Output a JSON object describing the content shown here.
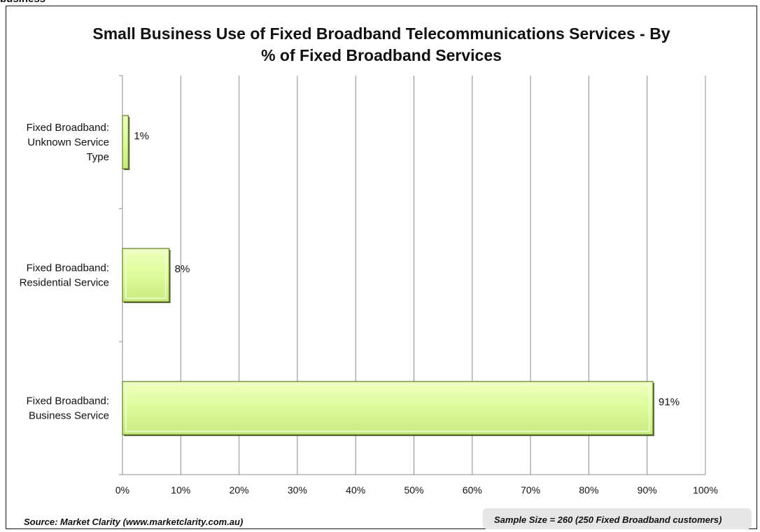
{
  "page_top_fragment": "business",
  "chart_data": {
    "type": "bar",
    "orientation": "horizontal",
    "title": "Small Business Use of Fixed Broadband Telecommunications Services - By % of Fixed Broadband Services",
    "title_lines": [
      "Small Business Use of Fixed Broadband Telecommunications Services - By",
      "% of Fixed Broadband Services"
    ],
    "categories": [
      "Fixed Broadband: Unknown Service Type",
      "Fixed Broadband: Residential Service",
      "Fixed Broadband: Business Service"
    ],
    "category_label_lines": [
      [
        "Fixed Broadband:",
        "Unknown Service",
        "Type"
      ],
      [
        "Fixed Broadband:",
        "Residential Service"
      ],
      [
        "Fixed Broadband:",
        "Business Service"
      ]
    ],
    "values": [
      1,
      8,
      91
    ],
    "value_labels": [
      "1%",
      "8%",
      "91%"
    ],
    "xlim": [
      0,
      100
    ],
    "x_ticks": [
      0,
      10,
      20,
      30,
      40,
      50,
      60,
      70,
      80,
      90,
      100
    ],
    "x_tick_labels": [
      "0%",
      "10%",
      "20%",
      "30%",
      "40%",
      "50%",
      "60%",
      "70%",
      "80%",
      "90%",
      "100%"
    ],
    "xlabel": "",
    "ylabel": "",
    "grid": "vertical",
    "legend": "none",
    "bar_fill": "#ddfb9a",
    "bar_edge": "#5f7a2a"
  },
  "footer": {
    "source": "Source: Market Clarity (www.marketclarity.com.au)",
    "sample_size": "Sample Size = 260 (250 Fixed Broadband customers)"
  }
}
